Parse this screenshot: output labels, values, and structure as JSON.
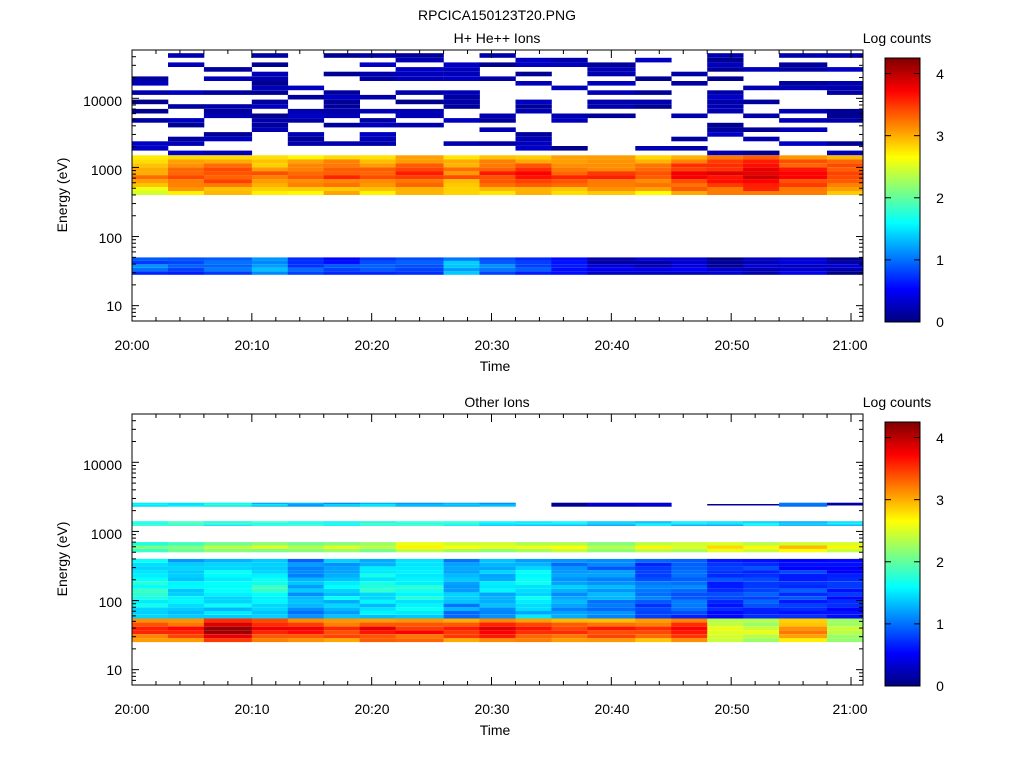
{
  "figure": {
    "title": "RPCICA150123T20.PNG"
  },
  "chart_data": [
    {
      "type": "heatmap",
      "title": "H+ He++ Ions",
      "xlabel": "Time",
      "ylabel": "Energy (eV)",
      "x_ticks": [
        "20:00",
        "20:10",
        "20:20",
        "20:30",
        "20:40",
        "20:50",
        "21:00"
      ],
      "y_ticks": [
        "10",
        "100",
        "1000",
        "10000"
      ],
      "y_scale": "log",
      "ylim_eV": [
        6,
        50000
      ],
      "xlim": [
        "20:00",
        "21:01"
      ],
      "colorbar": {
        "label": "Log counts",
        "ticks": [
          "0",
          "1",
          "2",
          "3",
          "4"
        ],
        "range": [
          0,
          4.25
        ]
      },
      "time_columns": [
        "20:00",
        "20:03",
        "20:06",
        "20:10",
        "20:13",
        "20:16",
        "20:19",
        "20:22",
        "20:26",
        "20:29",
        "20:32",
        "20:35",
        "20:38",
        "20:42",
        "20:45",
        "20:48",
        "20:51",
        "20:54",
        "20:58"
      ],
      "energy_bands": [
        {
          "energy_eV": [
            400,
            1500
          ],
          "log_counts": [
            2.9,
            3.1,
            3.2,
            3.0,
            3.1,
            3.2,
            3.1,
            3.2,
            3.0,
            3.2,
            3.3,
            3.2,
            3.2,
            3.1,
            3.4,
            3.5,
            3.6,
            3.4,
            3.3
          ]
        },
        {
          "energy_eV": [
            28,
            50
          ],
          "log_counts": [
            0.9,
            0.8,
            0.9,
            1.2,
            0.8,
            0.7,
            0.9,
            0.8,
            1.3,
            1.0,
            0.8,
            0.5,
            0.3,
            0.3,
            0.4,
            0.2,
            0.3,
            0.3,
            0.2
          ]
        },
        {
          "energy_eV": [
            1500,
            45000
          ],
          "log_counts": "sparse 0-0.3 (dark blue)"
        }
      ]
    },
    {
      "type": "heatmap",
      "title": "Other Ions",
      "xlabel": "Time",
      "ylabel": "Energy (eV)",
      "x_ticks": [
        "20:00",
        "20:10",
        "20:20",
        "20:30",
        "20:40",
        "20:50",
        "21:00"
      ],
      "y_ticks": [
        "10",
        "100",
        "1000",
        "10000"
      ],
      "y_scale": "log",
      "ylim_eV": [
        6,
        50000
      ],
      "xlim": [
        "20:00",
        "21:01"
      ],
      "colorbar": {
        "label": "Log counts",
        "ticks": [
          "0",
          "1",
          "2",
          "3",
          "4"
        ],
        "range": [
          0,
          4.25
        ]
      },
      "time_columns": [
        "20:00",
        "20:03",
        "20:06",
        "20:10",
        "20:13",
        "20:16",
        "20:19",
        "20:22",
        "20:26",
        "20:29",
        "20:32",
        "20:35",
        "20:38",
        "20:42",
        "20:45",
        "20:48",
        "20:51",
        "20:54",
        "20:58"
      ],
      "energy_bands": [
        {
          "energy_eV": [
            25,
            55
          ],
          "log_counts": [
            3.3,
            3.4,
            3.8,
            3.5,
            3.4,
            3.3,
            3.5,
            3.4,
            3.4,
            3.5,
            3.4,
            3.2,
            3.3,
            3.2,
            3.4,
            2.5,
            2.4,
            3.0,
            2.3
          ]
        },
        {
          "energy_eV": [
            55,
            400
          ],
          "log_counts": [
            1.6,
            1.4,
            1.5,
            1.6,
            1.2,
            1.4,
            1.5,
            1.6,
            1.2,
            1.3,
            1.5,
            1.2,
            1.1,
            0.9,
            0.9,
            0.7,
            0.8,
            0.7,
            0.6
          ]
        },
        {
          "energy_eV": [
            500,
            700
          ],
          "log_counts": [
            1.9,
            2.0,
            2.1,
            2.2,
            2.3,
            2.4,
            2.3,
            2.5,
            2.4,
            2.4,
            2.3,
            2.4,
            2.3,
            2.5,
            2.4,
            2.5,
            2.4,
            2.6,
            2.4
          ]
        },
        {
          "energy_eV": [
            1200,
            1400
          ],
          "log_counts": [
            1.7,
            1.7,
            1.7,
            1.7,
            1.7,
            1.7,
            1.7,
            1.7,
            1.6,
            1.5,
            1.4,
            1.5,
            1.4,
            1.4,
            1.4,
            1.4,
            1.5,
            1.4,
            1.4
          ]
        },
        {
          "energy_eV": [
            2300,
            2600
          ],
          "log_counts": [
            1.5,
            1.5,
            1.5,
            1.4,
            1.2,
            1.3,
            1.4,
            1.3,
            1.3,
            1.3,
            0.0,
            0.0,
            0.3,
            0.3,
            0.0,
            0.0,
            0.0,
            1.0,
            0.0
          ]
        }
      ]
    }
  ]
}
